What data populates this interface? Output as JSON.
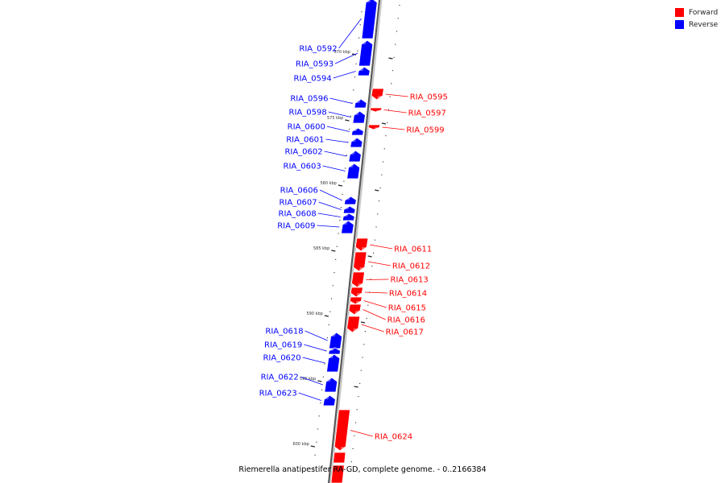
{
  "caption": "Riemerella anatipestifer RA-GD, complete genome. - 0..2166384",
  "legend": [
    {
      "label": "Forward",
      "color": "#ff0000"
    },
    {
      "label": "Reverse",
      "color": "#0000ff"
    }
  ],
  "scale_ticks": [
    "570 kbp",
    "575 kbp",
    "580 kbp",
    "585 kbp",
    "590 kbp",
    "595 kbp",
    "600 kbp"
  ],
  "genes": [
    {
      "name": "RIA_0592",
      "strand": "reverse"
    },
    {
      "name": "RIA_0593",
      "strand": "reverse"
    },
    {
      "name": "RIA_0594",
      "strand": "reverse"
    },
    {
      "name": "RIA_0595",
      "strand": "forward"
    },
    {
      "name": "RIA_0596",
      "strand": "reverse"
    },
    {
      "name": "RIA_0597",
      "strand": "forward"
    },
    {
      "name": "RIA_0598",
      "strand": "reverse"
    },
    {
      "name": "RIA_0599",
      "strand": "forward"
    },
    {
      "name": "RIA_0600",
      "strand": "reverse"
    },
    {
      "name": "RIA_0601",
      "strand": "reverse"
    },
    {
      "name": "RIA_0602",
      "strand": "reverse"
    },
    {
      "name": "RIA_0603",
      "strand": "reverse"
    },
    {
      "name": "RIA_0606",
      "strand": "reverse"
    },
    {
      "name": "RIA_0607",
      "strand": "reverse"
    },
    {
      "name": "RIA_0608",
      "strand": "reverse"
    },
    {
      "name": "RIA_0609",
      "strand": "reverse"
    },
    {
      "name": "RIA_0611",
      "strand": "forward"
    },
    {
      "name": "RIA_0612",
      "strand": "forward"
    },
    {
      "name": "RIA_0613",
      "strand": "forward"
    },
    {
      "name": "RIA_0614",
      "strand": "forward"
    },
    {
      "name": "RIA_0615",
      "strand": "forward"
    },
    {
      "name": "RIA_0616",
      "strand": "forward"
    },
    {
      "name": "RIA_0617",
      "strand": "forward"
    },
    {
      "name": "RIA_0618",
      "strand": "reverse"
    },
    {
      "name": "RIA_0619",
      "strand": "reverse"
    },
    {
      "name": "RIA_0620",
      "strand": "reverse"
    },
    {
      "name": "RIA_0622",
      "strand": "reverse"
    },
    {
      "name": "RIA_0623",
      "strand": "reverse"
    },
    {
      "name": "RIA_0624",
      "strand": "forward"
    }
  ]
}
